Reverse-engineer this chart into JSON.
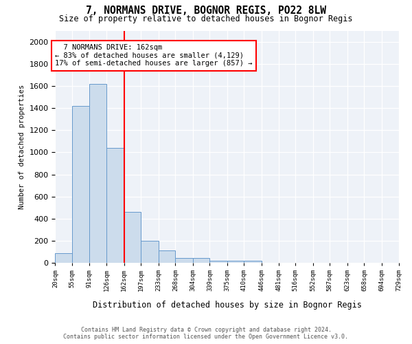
{
  "title": "7, NORMANS DRIVE, BOGNOR REGIS, PO22 8LW",
  "subtitle": "Size of property relative to detached houses in Bognor Regis",
  "xlabel": "Distribution of detached houses by size in Bognor Regis",
  "ylabel": "Number of detached properties",
  "footer_line1": "Contains HM Land Registry data © Crown copyright and database right 2024.",
  "footer_line2": "Contains public sector information licensed under the Open Government Licence v3.0.",
  "annotation_line1": "  7 NORMANS DRIVE: 162sqm  ",
  "annotation_line2": "← 83% of detached houses are smaller (4,129)",
  "annotation_line3": "17% of semi-detached houses are larger (857) →",
  "property_size_idx": 4,
  "bar_color": "#ccdcec",
  "bar_edge_color": "#6699cc",
  "vline_color": "red",
  "bin_edges": [
    20,
    55,
    91,
    126,
    162,
    197,
    233,
    268,
    304,
    339,
    375,
    410,
    446,
    481,
    516,
    552,
    587,
    623,
    658,
    694,
    729
  ],
  "bin_labels": [
    "20sqm",
    "55sqm",
    "91sqm",
    "126sqm",
    "162sqm",
    "197sqm",
    "233sqm",
    "268sqm",
    "304sqm",
    "339sqm",
    "375sqm",
    "410sqm",
    "446sqm",
    "481sqm",
    "516sqm",
    "552sqm",
    "587sqm",
    "623sqm",
    "658sqm",
    "694sqm",
    "729sqm"
  ],
  "bar_heights": [
    85,
    1420,
    1620,
    1040,
    460,
    200,
    110,
    45,
    40,
    20,
    15,
    20,
    0,
    0,
    0,
    0,
    0,
    0,
    0,
    0
  ],
  "ylim": [
    0,
    2100
  ],
  "yticks": [
    0,
    200,
    400,
    600,
    800,
    1000,
    1200,
    1400,
    1600,
    1800,
    2000
  ],
  "background_color": "#ffffff",
  "plot_bg_color": "#eef2f8"
}
